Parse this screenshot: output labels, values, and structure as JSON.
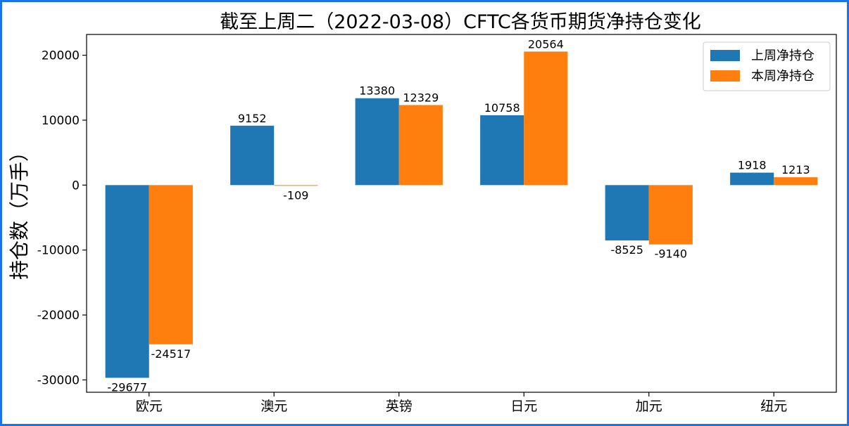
{
  "chart_data": {
    "type": "bar",
    "title": "截至上周二（2022-03-08）CFTC各货币期货净持仓变化",
    "xlabel": "",
    "ylabel": "持仓数（万手）",
    "categories": [
      "欧元",
      "澳元",
      "英镑",
      "日元",
      "加元",
      "纽元"
    ],
    "series": [
      {
        "name": "上周净持仓",
        "color": "#1f77b4",
        "values": [
          -29677,
          9152,
          13380,
          10758,
          -8525,
          1918
        ]
      },
      {
        "name": "本周净持仓",
        "color": "#ff7f0e",
        "values": [
          -24517,
          -109,
          12329,
          20564,
          -9140,
          1213
        ]
      }
    ],
    "ylim": [
      -31900,
      23200
    ],
    "yticks": [
      -30000,
      -20000,
      -10000,
      0,
      10000,
      20000
    ],
    "grid": false,
    "legend_position": "top-right"
  }
}
